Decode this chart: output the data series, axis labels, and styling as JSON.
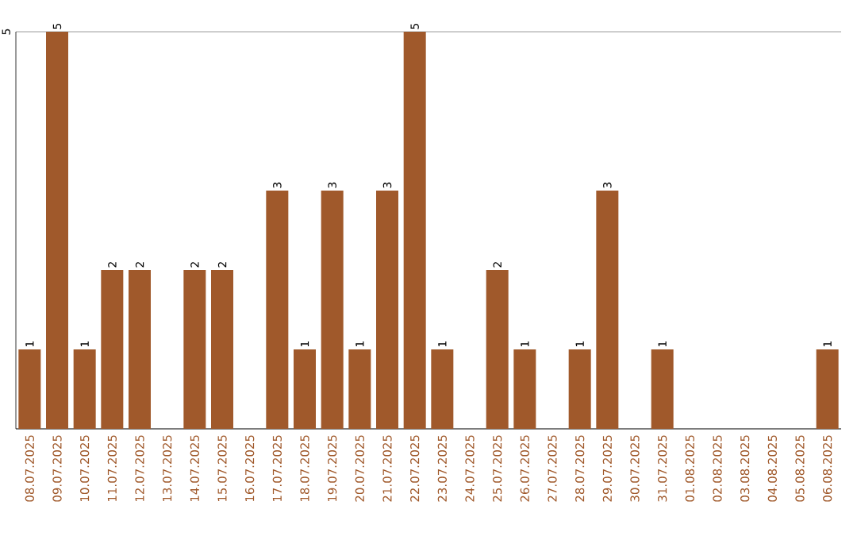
{
  "chart_data": {
    "type": "bar",
    "categories": [
      "08.07.2025",
      "09.07.2025",
      "10.07.2025",
      "11.07.2025",
      "12.07.2025",
      "13.07.2025",
      "14.07.2025",
      "15.07.2025",
      "16.07.2025",
      "17.07.2025",
      "18.07.2025",
      "19.07.2025",
      "20.07.2025",
      "21.07.2025",
      "22.07.2025",
      "23.07.2025",
      "24.07.2025",
      "25.07.2025",
      "26.07.2025",
      "27.07.2025",
      "28.07.2025",
      "29.07.2025",
      "30.07.2025",
      "31.07.2025",
      "01.08.2025",
      "02.08.2025",
      "03.08.2025",
      "04.08.2025",
      "05.08.2025",
      "06.08.2025"
    ],
    "values": [
      1,
      5,
      1,
      2,
      2,
      0,
      2,
      2,
      0,
      3,
      1,
      3,
      1,
      3,
      5,
      1,
      0,
      2,
      1,
      0,
      1,
      3,
      0,
      1,
      0,
      0,
      0,
      0,
      0,
      1
    ],
    "value_labels": [
      "1",
      "5",
      "1",
      "2",
      "2",
      null,
      "2",
      "2",
      null,
      "3",
      "1",
      "3",
      "1",
      "3",
      "5",
      "1",
      null,
      "2",
      "1",
      null,
      "1",
      "3",
      null,
      "1",
      null,
      null,
      null,
      null,
      null,
      "1"
    ],
    "color": "#a0592b",
    "ylim": [
      0,
      5
    ],
    "yticks": [
      {
        "value": 0,
        "label": null
      },
      5
    ],
    "grid": "y"
  }
}
